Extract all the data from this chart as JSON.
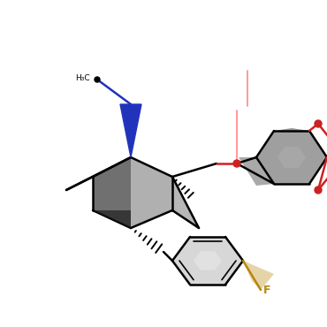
{
  "bg_color": "#ffffff",
  "fig_size": [
    3.7,
    3.7
  ],
  "dpi": 100,
  "colors": {
    "black": "#000000",
    "blue": "#2233bb",
    "red": "#cc2222",
    "gold": "#b8860b",
    "dark_gray": "#404040",
    "mid_gray": "#707070",
    "light_gray": "#b0b0b0",
    "pink": "#ffaaaa",
    "white": "#ffffff"
  },
  "lw_main": 1.8,
  "lw_thin": 1.2
}
